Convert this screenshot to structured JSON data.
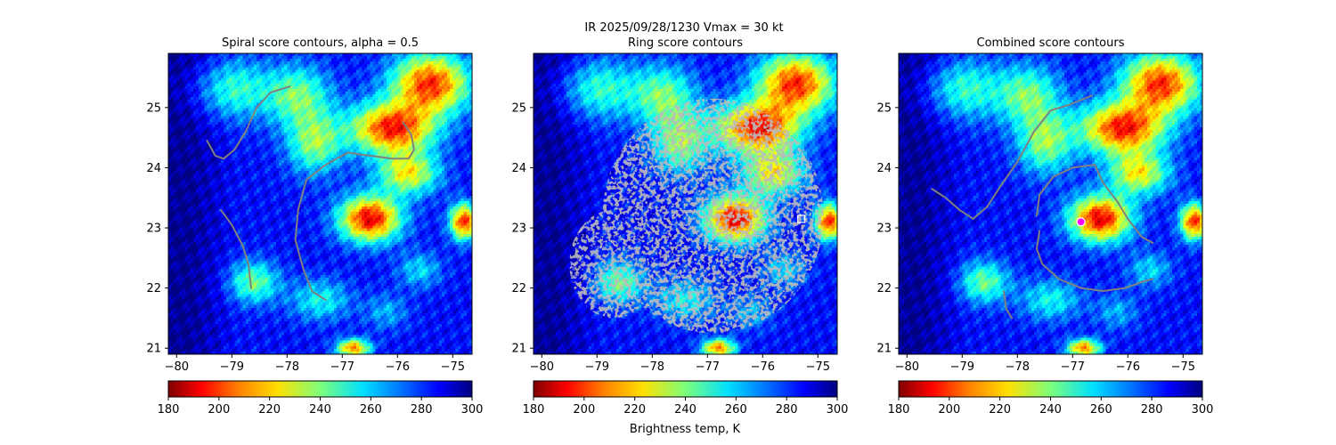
{
  "figure": {
    "suptitle_line1": "IR  2025/09/28/1230    Vmax = 30 kt",
    "colorbar_label": "Brightness temp, K"
  },
  "colors": {
    "contour": "#808080",
    "marker_square": "#ffffff",
    "marker_circle": "#ff00ff"
  },
  "chart_data": [
    {
      "type": "heatmap",
      "title": "Spiral score contours, alpha =  0.5",
      "xlim": [
        -80.15,
        -74.65
      ],
      "ylim": [
        20.9,
        25.9
      ],
      "xticks": [
        -80,
        -79,
        -78,
        -77,
        -76,
        -75
      ],
      "yticks": [
        21,
        22,
        23,
        24,
        25
      ],
      "xtick_labels": [
        "−80",
        "−79",
        "−78",
        "−77",
        "−76",
        "−75"
      ],
      "ytick_labels": [
        "21",
        "22",
        "23",
        "24",
        "25"
      ],
      "colorbar": {
        "cmap": "jet_r",
        "vmin": 180,
        "vmax": 300,
        "ticks": [
          "180",
          "200",
          "220",
          "240",
          "260",
          "280",
          "300"
        ]
      },
      "contours": [
        [
          [
            -79.45,
            24.45
          ],
          [
            -79.3,
            24.2
          ],
          [
            -79.15,
            24.15
          ],
          [
            -78.95,
            24.3
          ],
          [
            -78.75,
            24.6
          ],
          [
            -78.55,
            25.0
          ],
          [
            -78.3,
            25.25
          ],
          [
            -77.95,
            25.35
          ]
        ],
        [
          [
            -79.2,
            23.3
          ],
          [
            -79.0,
            23.05
          ],
          [
            -78.8,
            22.7
          ],
          [
            -78.7,
            22.4
          ],
          [
            -78.65,
            22.0
          ]
        ],
        [
          [
            -77.3,
            21.8
          ],
          [
            -77.55,
            21.95
          ],
          [
            -77.7,
            22.3
          ],
          [
            -77.85,
            22.8
          ],
          [
            -77.8,
            23.3
          ],
          [
            -77.65,
            23.8
          ],
          [
            -77.3,
            24.05
          ],
          [
            -76.9,
            24.25
          ],
          [
            -76.5,
            24.2
          ],
          [
            -76.1,
            24.15
          ],
          [
            -75.8,
            24.15
          ],
          [
            -75.7,
            24.3
          ],
          [
            -75.75,
            24.55
          ],
          [
            -75.9,
            24.75
          ]
        ]
      ],
      "markers": []
    },
    {
      "type": "heatmap",
      "title": "Ring score contours",
      "xlim": [
        -80.15,
        -74.65
      ],
      "ylim": [
        20.9,
        25.9
      ],
      "xticks": [
        -80,
        -79,
        -78,
        -77,
        -76,
        -75
      ],
      "yticks": [
        21,
        22,
        23,
        24,
        25
      ],
      "xtick_labels": [
        "−80",
        "−79",
        "−78",
        "−77",
        "−76",
        "−75"
      ],
      "ytick_labels": [
        "21",
        "22",
        "23",
        "24",
        "25"
      ],
      "colorbar": {
        "cmap": "jet_r",
        "vmin": 180,
        "vmax": 300,
        "ticks": [
          "180",
          "200",
          "220",
          "240",
          "260",
          "280",
          "300"
        ]
      },
      "ring_region": {
        "center": [
          -76.9,
          23.2
        ],
        "rx": 2.0,
        "ry": 1.95
      },
      "contours": [],
      "markers": [
        {
          "shape": "square",
          "lon": -75.3,
          "lat": 23.15
        }
      ]
    },
    {
      "type": "heatmap",
      "title": "Combined score contours",
      "xlim": [
        -80.15,
        -74.65
      ],
      "ylim": [
        20.9,
        25.9
      ],
      "xticks": [
        -80,
        -79,
        -78,
        -77,
        -76,
        -75
      ],
      "yticks": [
        21,
        22,
        23,
        24,
        25
      ],
      "xtick_labels": [
        "−80",
        "−79",
        "−78",
        "−77",
        "−76",
        "−75"
      ],
      "ytick_labels": [
        "21",
        "22",
        "23",
        "24",
        "25"
      ],
      "colorbar": {
        "cmap": "jet_r",
        "vmin": 180,
        "vmax": 300,
        "ticks": [
          "180",
          "200",
          "220",
          "240",
          "260",
          "280",
          "300"
        ]
      },
      "contours": [
        [
          [
            -79.55,
            23.65
          ],
          [
            -79.3,
            23.5
          ],
          [
            -79.05,
            23.3
          ],
          [
            -78.8,
            23.15
          ],
          [
            -78.55,
            23.35
          ],
          [
            -78.3,
            23.7
          ],
          [
            -78.0,
            24.1
          ],
          [
            -77.7,
            24.6
          ],
          [
            -77.4,
            24.95
          ],
          [
            -77.05,
            25.05
          ],
          [
            -76.65,
            25.2
          ]
        ],
        [
          [
            -77.6,
            22.95
          ],
          [
            -77.65,
            22.65
          ],
          [
            -77.55,
            22.4
          ],
          [
            -77.25,
            22.15
          ],
          [
            -76.85,
            22.0
          ],
          [
            -76.45,
            21.95
          ],
          [
            -76.05,
            22.0
          ],
          [
            -75.75,
            22.1
          ],
          [
            -75.55,
            22.15
          ]
        ],
        [
          [
            -77.65,
            23.2
          ],
          [
            -77.6,
            23.55
          ],
          [
            -77.35,
            23.85
          ],
          [
            -77.0,
            24.0
          ],
          [
            -76.6,
            24.05
          ],
          [
            -76.45,
            23.75
          ],
          [
            -76.2,
            23.45
          ],
          [
            -76.0,
            23.15
          ],
          [
            -75.75,
            22.85
          ],
          [
            -75.55,
            22.75
          ]
        ],
        [
          [
            -78.1,
            21.5
          ],
          [
            -78.2,
            21.65
          ],
          [
            -78.25,
            21.95
          ]
        ]
      ],
      "markers": [
        {
          "shape": "circle",
          "lon": -76.85,
          "lat": 23.1
        }
      ]
    }
  ]
}
